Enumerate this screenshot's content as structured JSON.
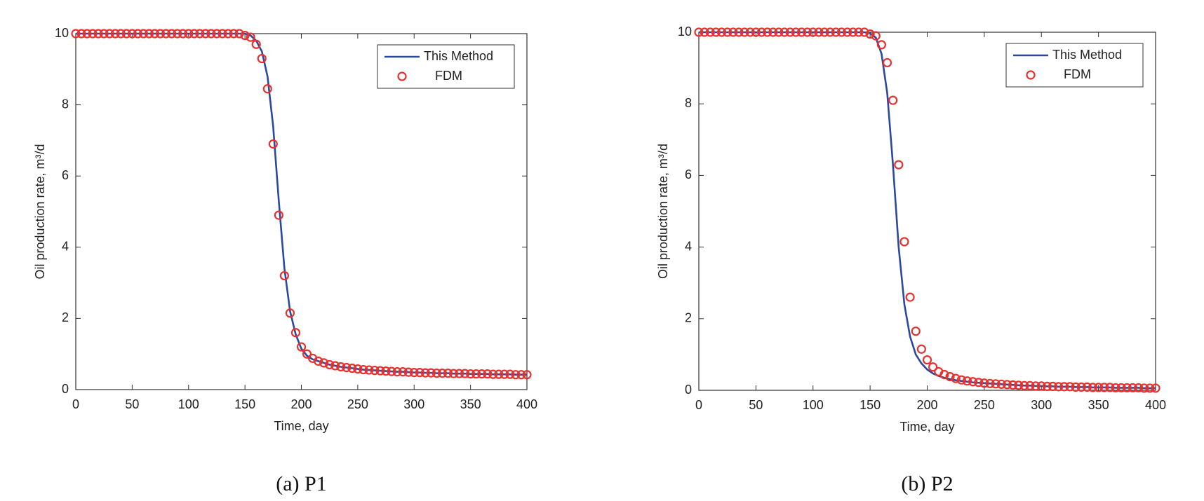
{
  "chart_data": [
    {
      "type": "line",
      "subtitle": "(a) P1",
      "xlabel": "Time, day",
      "ylabel": "Oil production rate, m³/d",
      "x": [
        0,
        5,
        10,
        15,
        20,
        25,
        30,
        35,
        40,
        45,
        50,
        55,
        60,
        65,
        70,
        75,
        80,
        85,
        90,
        95,
        100,
        105,
        110,
        115,
        120,
        125,
        130,
        135,
        140,
        145,
        150,
        155,
        160,
        165,
        170,
        175,
        180,
        185,
        190,
        195,
        200,
        205,
        210,
        215,
        220,
        225,
        230,
        235,
        240,
        245,
        250,
        255,
        260,
        265,
        270,
        275,
        280,
        285,
        290,
        295,
        300,
        305,
        310,
        315,
        320,
        325,
        330,
        335,
        340,
        345,
        350,
        355,
        360,
        365,
        370,
        375,
        380,
        385,
        390,
        395,
        400
      ],
      "series": [
        {
          "name": "This Method",
          "color": "#2b4a9e",
          "marker": "line",
          "values": [
            10,
            10,
            10,
            10,
            10,
            10,
            10,
            10,
            10,
            10,
            10,
            10,
            10,
            10,
            10,
            10,
            10,
            10,
            10,
            10,
            10,
            10,
            10,
            10,
            10,
            10,
            10,
            10,
            10,
            10,
            10,
            9.95,
            9.8,
            9.5,
            8.8,
            7.4,
            5.3,
            3.4,
            2.2,
            1.55,
            1.15,
            0.95,
            0.85,
            0.8,
            0.75,
            0.7,
            0.67,
            0.64,
            0.62,
            0.6,
            0.58,
            0.56,
            0.55,
            0.54,
            0.53,
            0.52,
            0.51,
            0.5,
            0.5,
            0.49,
            0.48,
            0.48,
            0.47,
            0.47,
            0.46,
            0.46,
            0.46,
            0.45,
            0.45,
            0.45,
            0.44,
            0.44,
            0.44,
            0.44,
            0.43,
            0.43,
            0.43,
            0.43,
            0.42,
            0.42,
            0.42
          ]
        },
        {
          "name": "FDM",
          "color": "#e8312f",
          "marker": "circle",
          "values": [
            10,
            10,
            10,
            10,
            10,
            10,
            10,
            10,
            10,
            10,
            10,
            10,
            10,
            10,
            10,
            10,
            10,
            10,
            10,
            10,
            10,
            10,
            10,
            10,
            10,
            10,
            10,
            10,
            10,
            10,
            9.95,
            9.9,
            9.7,
            9.3,
            8.45,
            6.9,
            4.9,
            3.2,
            2.15,
            1.6,
            1.2,
            1.0,
            0.88,
            0.8,
            0.75,
            0.7,
            0.67,
            0.64,
            0.62,
            0.6,
            0.58,
            0.56,
            0.55,
            0.54,
            0.53,
            0.52,
            0.51,
            0.5,
            0.5,
            0.49,
            0.48,
            0.48,
            0.47,
            0.47,
            0.46,
            0.46,
            0.46,
            0.45,
            0.45,
            0.45,
            0.44,
            0.44,
            0.44,
            0.44,
            0.43,
            0.43,
            0.43,
            0.43,
            0.42,
            0.42,
            0.42
          ]
        }
      ],
      "xlim": [
        0,
        400
      ],
      "xticks": [
        0,
        50,
        100,
        150,
        200,
        250,
        300,
        350,
        400
      ],
      "ylim": [
        0,
        10
      ],
      "yticks": [
        0,
        2,
        4,
        6,
        8,
        10
      ],
      "legend": "upper right"
    },
    {
      "type": "line",
      "subtitle": "(b) P2",
      "xlabel": "Time, day",
      "ylabel": "Oil production rate, m³/d",
      "x": [
        0,
        5,
        10,
        15,
        20,
        25,
        30,
        35,
        40,
        45,
        50,
        55,
        60,
        65,
        70,
        75,
        80,
        85,
        90,
        95,
        100,
        105,
        110,
        115,
        120,
        125,
        130,
        135,
        140,
        145,
        150,
        155,
        160,
        165,
        170,
        175,
        180,
        185,
        190,
        195,
        200,
        205,
        210,
        215,
        220,
        225,
        230,
        235,
        240,
        245,
        250,
        255,
        260,
        265,
        270,
        275,
        280,
        285,
        290,
        295,
        300,
        305,
        310,
        315,
        320,
        325,
        330,
        335,
        340,
        345,
        350,
        355,
        360,
        365,
        370,
        375,
        380,
        385,
        390,
        395,
        400
      ],
      "series": [
        {
          "name": "This Method",
          "color": "#2b4a9e",
          "marker": "line",
          "values": [
            10,
            10,
            10,
            10,
            10,
            10,
            10,
            10,
            10,
            10,
            10,
            10,
            10,
            10,
            10,
            10,
            10,
            10,
            10,
            10,
            10,
            10,
            10,
            10,
            10,
            10,
            10,
            10,
            10,
            10,
            9.97,
            9.85,
            9.4,
            8.3,
            6.3,
            4.0,
            2.4,
            1.5,
            1.0,
            0.75,
            0.58,
            0.47,
            0.4,
            0.35,
            0.31,
            0.28,
            0.26,
            0.24,
            0.22,
            0.21,
            0.2,
            0.19,
            0.18,
            0.17,
            0.16,
            0.15,
            0.14,
            0.13,
            0.13,
            0.12,
            0.12,
            0.11,
            0.11,
            0.1,
            0.1,
            0.1,
            0.09,
            0.09,
            0.09,
            0.08,
            0.08,
            0.08,
            0.08,
            0.07,
            0.07,
            0.07,
            0.07,
            0.07,
            0.06,
            0.06,
            0.06
          ]
        },
        {
          "name": "FDM",
          "color": "#e8312f",
          "marker": "circle",
          "values": [
            10,
            10,
            10,
            10,
            10,
            10,
            10,
            10,
            10,
            10,
            10,
            10,
            10,
            10,
            10,
            10,
            10,
            10,
            10,
            10,
            10,
            10,
            10,
            10,
            10,
            10,
            10,
            10,
            10,
            10,
            9.95,
            9.9,
            9.65,
            9.15,
            8.1,
            6.3,
            4.15,
            2.6,
            1.65,
            1.15,
            0.85,
            0.65,
            0.52,
            0.44,
            0.38,
            0.33,
            0.29,
            0.26,
            0.24,
            0.22,
            0.2,
            0.19,
            0.18,
            0.17,
            0.16,
            0.15,
            0.14,
            0.13,
            0.13,
            0.12,
            0.12,
            0.11,
            0.11,
            0.1,
            0.1,
            0.1,
            0.09,
            0.09,
            0.09,
            0.08,
            0.08,
            0.08,
            0.08,
            0.07,
            0.07,
            0.07,
            0.07,
            0.07,
            0.06,
            0.06,
            0.06
          ]
        }
      ],
      "xlim": [
        0,
        400
      ],
      "xticks": [
        0,
        50,
        100,
        150,
        200,
        250,
        300,
        350,
        400
      ],
      "ylim": [
        0,
        10
      ],
      "yticks": [
        0,
        2,
        4,
        6,
        8,
        10
      ],
      "legend": "upper right"
    }
  ]
}
